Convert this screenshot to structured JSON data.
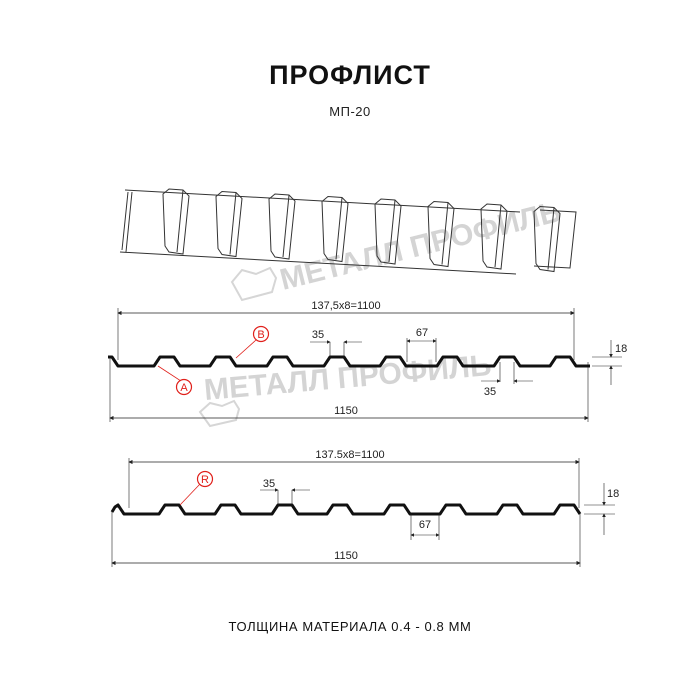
{
  "title": "ПРОФЛИСТ",
  "subtitle": "МП-20",
  "footer": "ТОЛЩИНА МАТЕРИАЛА 0.4 - 0.8 ММ",
  "watermark": "МЕТАЛЛ ПРОФИЛЬ",
  "accent_color": "#e0201b",
  "profile_a": {
    "pitch_label": "137,5x8=1100",
    "total_width_label": "1150",
    "rib_top_label": "35",
    "rib_bottom_label": "35",
    "valley_label": "67",
    "height_label": "18",
    "marker_a": "A",
    "marker_b": "B"
  },
  "profile_r": {
    "pitch_label": "137.5x8=1100",
    "total_width_label": "1150",
    "rib_top_label": "35",
    "valley_label": "67",
    "height_label": "18",
    "marker_r": "R"
  }
}
